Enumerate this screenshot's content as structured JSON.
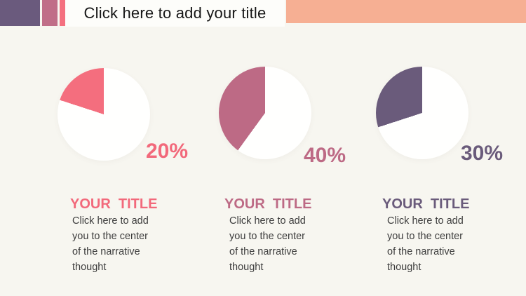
{
  "slide": {
    "background_color": "#f7f6f0",
    "header": {
      "title": "Click here to add your title",
      "accent_purple": "#6a5a7d",
      "accent_mauve": "#c06e88",
      "accent_coral": "#f4707f",
      "right_bar_color": "#f6af93",
      "title_band_color": "#fdfdfa"
    },
    "charts": [
      {
        "percent_label": "20%",
        "title": "YOUR  TITLE",
        "body": "Click here to add\nyou to the center\nof the narrative\nthought",
        "color": "#f2697b"
      },
      {
        "percent_label": "40%",
        "title": "YOUR  TITLE",
        "body": "Click here to add\nyou to the center\nof the narrative\nthought",
        "color": "#bd6a85"
      },
      {
        "percent_label": "30%",
        "title": "YOUR  TITLE",
        "body": "Click here to add\nyou to the center\nof the narrative\nthought",
        "color": "#6a5b7b"
      }
    ]
  },
  "chart_data": [
    {
      "type": "pie",
      "values": [
        20,
        80
      ],
      "colors": [
        "#f46e7e",
        "#fffffe"
      ],
      "label": "20%",
      "start": "top",
      "direction": "counterclockwise",
      "legend": false
    },
    {
      "type": "pie",
      "values": [
        40,
        60
      ],
      "colors": [
        "#bd6a85",
        "#fffffe"
      ],
      "label": "40%",
      "start": "top",
      "direction": "counterclockwise",
      "legend": false
    },
    {
      "type": "pie",
      "values": [
        30,
        70
      ],
      "colors": [
        "#6a5b7b",
        "#fffffe"
      ],
      "label": "30%",
      "start": "top",
      "direction": "counterclockwise",
      "legend": false
    }
  ]
}
